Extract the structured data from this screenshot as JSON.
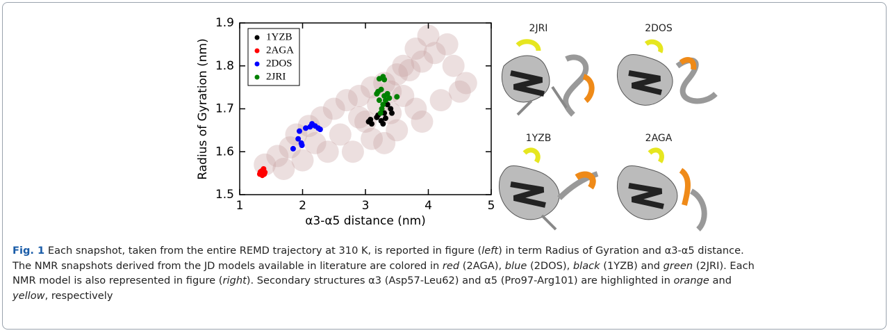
{
  "chart_data": {
    "type": "scatter",
    "xlabel": "α3-α5 distance (nm)",
    "ylabel": "Radius of Gyration (nm)",
    "xlim": [
      1,
      5
    ],
    "ylim": [
      1.5,
      1.9
    ],
    "xticks": [
      1,
      2,
      3,
      4,
      5
    ],
    "yticks": [
      1.5,
      1.6,
      1.7,
      1.8,
      1.9
    ],
    "legend": "upper left",
    "series": [
      {
        "color": "#c9a3a3",
        "x": [
          1.4,
          1.6,
          1.8,
          1.9,
          2.1,
          2.3,
          2.5,
          2.7,
          2.9,
          3.1,
          3.3,
          3.5,
          3.7,
          3.9,
          4.1,
          4.3,
          4.0,
          3.8,
          3.6,
          3.4,
          3.2,
          2.2,
          2.6,
          3.0,
          3.4,
          3.8,
          4.2,
          4.5,
          4.6,
          3.9,
          3.5,
          3.1,
          2.8,
          2.4,
          2.0,
          1.7,
          4.4,
          3.3,
          2.9,
          3.6
        ],
        "y": [
          1.57,
          1.59,
          1.61,
          1.64,
          1.66,
          1.68,
          1.7,
          1.72,
          1.73,
          1.75,
          1.76,
          1.78,
          1.79,
          1.81,
          1.83,
          1.85,
          1.87,
          1.84,
          1.8,
          1.74,
          1.71,
          1.62,
          1.64,
          1.67,
          1.69,
          1.7,
          1.72,
          1.74,
          1.76,
          1.67,
          1.65,
          1.63,
          1.6,
          1.6,
          1.58,
          1.56,
          1.8,
          1.62,
          1.68,
          1.73
        ]
      },
      {
        "name": "1YZB",
        "color": "#000000",
        "x": [
          3.05,
          3.1,
          3.08,
          3.18,
          3.25,
          3.28,
          3.32,
          3.3,
          3.35,
          3.4,
          3.42,
          3.2
        ],
        "y": [
          1.67,
          1.665,
          1.675,
          1.68,
          1.672,
          1.665,
          1.678,
          1.69,
          1.71,
          1.7,
          1.69,
          1.685
        ]
      },
      {
        "name": "2AGA",
        "color": "#ff0000",
        "x": [
          1.32,
          1.35,
          1.38,
          1.4,
          1.36,
          1.33,
          1.39
        ],
        "y": [
          1.548,
          1.555,
          1.56,
          1.552,
          1.545,
          1.553,
          1.548
        ]
      },
      {
        "name": "2DOS",
        "color": "#0000ff",
        "x": [
          1.85,
          1.93,
          1.95,
          1.98,
          1.99,
          2.05,
          2.12,
          2.15,
          2.2,
          2.25,
          2.28
        ],
        "y": [
          1.607,
          1.63,
          1.648,
          1.62,
          1.615,
          1.655,
          1.658,
          1.665,
          1.66,
          1.655,
          1.652
        ]
      },
      {
        "name": "2JRI",
        "color": "#008000",
        "x": [
          3.22,
          3.28,
          3.3,
          3.2,
          3.25,
          3.3,
          3.35,
          3.22,
          3.28,
          3.32,
          3.38,
          3.5,
          3.26,
          3.24,
          3.18
        ],
        "y": [
          1.77,
          1.775,
          1.768,
          1.74,
          1.745,
          1.73,
          1.735,
          1.72,
          1.71,
          1.72,
          1.725,
          1.728,
          1.7,
          1.69,
          1.735
        ]
      }
    ]
  },
  "structure_labels": [
    "2JRI",
    "2DOS",
    "1YZB",
    "2AGA"
  ],
  "caption": {
    "lines": [
      [
        {
          "text": "Fig. 1",
          "style": "bold"
        },
        {
          "text": " Each snapshot, taken from the entire REMD trajectory at 310 K, is reported in figure (",
          "style": "normal"
        },
        {
          "text": "left",
          "style": "italic"
        },
        {
          "text": ") in term Radius of Gyration and α3-α5 distance.",
          "style": "normal"
        }
      ],
      [
        {
          "text": "The NMR snapshots derived from the JD models available in literature are colored in ",
          "style": "normal"
        },
        {
          "text": "red",
          "style": "italic"
        },
        {
          "text": " (2AGA), ",
          "style": "normal"
        },
        {
          "text": "blue",
          "style": "italic"
        },
        {
          "text": " (2DOS), ",
          "style": "normal"
        },
        {
          "text": "black",
          "style": "italic"
        },
        {
          "text": " (1YZB) and ",
          "style": "normal"
        },
        {
          "text": "green",
          "style": "italic"
        },
        {
          "text": " (2JRI). Each",
          "style": "normal"
        }
      ],
      [
        {
          "text": "NMR model is also represented in figure (",
          "style": "normal"
        },
        {
          "text": "right",
          "style": "italic"
        },
        {
          "text": "). Secondary structures α3 (Asp57-Leu62) and α5 (Pro97-Arg101) are highlighted in ",
          "style": "normal"
        },
        {
          "text": "orange",
          "style": "italic"
        },
        {
          "text": " and",
          "style": "normal"
        }
      ],
      [
        {
          "text": "yellow",
          "style": "italic"
        },
        {
          "text": ", respectively",
          "style": "normal"
        }
      ]
    ]
  }
}
